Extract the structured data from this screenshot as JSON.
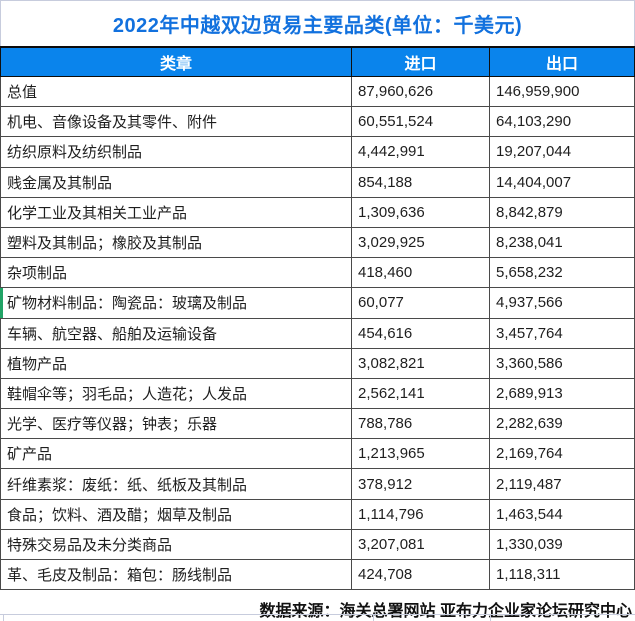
{
  "title": "2022年中越双边贸易主要品类(单位：千美元)",
  "colors": {
    "title_text": "#1271DE",
    "header_bg": "#0A84EC",
    "header_text": "#FFFFFF",
    "border_dark": "#4A4A4A",
    "row_marker_green": "#21A366",
    "gridline_light": "#C7CCDD"
  },
  "table": {
    "columns": [
      {
        "label": "类章"
      },
      {
        "label": "进口"
      },
      {
        "label": "出口"
      }
    ],
    "rows": [
      {
        "category": "总值",
        "import": "87,960,626",
        "export": "146,959,900"
      },
      {
        "category": "机电、音像设备及其零件、附件",
        "import": "60,551,524",
        "export": "64,103,290"
      },
      {
        "category": "纺织原料及纺织制品",
        "import": "4,442,991",
        "export": "19,207,044"
      },
      {
        "category": "贱金属及其制品",
        "import": "854,188",
        "export": "14,404,007"
      },
      {
        "category": "化学工业及其相关工业产品",
        "import": "1,309,636",
        "export": "8,842,879"
      },
      {
        "category": "塑料及其制品；橡胶及其制品",
        "import": "3,029,925",
        "export": "8,238,041"
      },
      {
        "category": "杂项制品",
        "import": "418,460",
        "export": "5,658,232"
      },
      {
        "category": "矿物材料制品：陶瓷品：玻璃及制品",
        "import": "60,077",
        "export": "4,937,566"
      },
      {
        "category": "车辆、航空器、船舶及运输设备",
        "import": "454,616",
        "export": "3,457,764"
      },
      {
        "category": "植物产品",
        "import": "3,082,821",
        "export": "3,360,586"
      },
      {
        "category": "鞋帽伞等；羽毛品；人造花；人发品",
        "import": "2,562,141",
        "export": "2,689,913"
      },
      {
        "category": "光学、医疗等仪器；钟表；乐器",
        "import": "788,786",
        "export": "2,282,639"
      },
      {
        "category": "矿产品",
        "import": "1,213,965",
        "export": "2,169,764"
      },
      {
        "category": "纤维素浆：废纸：纸、纸板及其制品",
        "import": "378,912",
        "export": "2,119,487"
      },
      {
        "category": "食品；饮料、酒及醋；烟草及制品",
        "import": "1,114,796",
        "export": "1,463,544"
      },
      {
        "category": "特殊交易品及未分类商品",
        "import": "3,207,081",
        "export": "1,330,039"
      },
      {
        "category": "革、毛皮及制品：箱包：肠线制品",
        "import": "424,708",
        "export": "1,118,311"
      }
    ],
    "green_marker_row_index": 7
  },
  "footer": {
    "source_note": "数据来源：海关总署网站 亚布力企业家论坛研究中心"
  },
  "chart_data": {
    "type": "table",
    "title": "2022年中越双边贸易主要品类(单位：千美元)",
    "unit": "千美元",
    "columns": [
      "类章",
      "进口",
      "出口"
    ],
    "rows": [
      [
        "总值",
        87960626,
        146959900
      ],
      [
        "机电、音像设备及其零件、附件",
        60551524,
        64103290
      ],
      [
        "纺织原料及纺织制品",
        4442991,
        19207044
      ],
      [
        "贱金属及其制品",
        854188,
        14404007
      ],
      [
        "化学工业及其相关工业产品",
        1309636,
        8842879
      ],
      [
        "塑料及其制品；橡胶及其制品",
        3029925,
        8238041
      ],
      [
        "杂项制品",
        418460,
        5658232
      ],
      [
        "矿物材料制品：陶瓷品：玻璃及制品",
        60077,
        4937566
      ],
      [
        "车辆、航空器、船舶及运输设备",
        454616,
        3457764
      ],
      [
        "植物产品",
        3082821,
        3360586
      ],
      [
        "鞋帽伞等；羽毛品；人造花；人发品",
        2562141,
        2689913
      ],
      [
        "光学、医疗等仪器；钟表；乐器",
        788786,
        2282639
      ],
      [
        "矿产品",
        1213965,
        2169764
      ],
      [
        "纤维素浆：废纸：纸、纸板及其制品",
        378912,
        2119487
      ],
      [
        "食品；饮料、酒及醋；烟草及制品",
        1114796,
        1463544
      ],
      [
        "特殊交易品及未分类商品",
        3207081,
        1330039
      ],
      [
        "革、毛皮及制品：箱包：肠线制品",
        424708,
        1118311
      ]
    ],
    "source_note": "数据来源：海关总署网站 亚布力企业家论坛研究中心"
  }
}
